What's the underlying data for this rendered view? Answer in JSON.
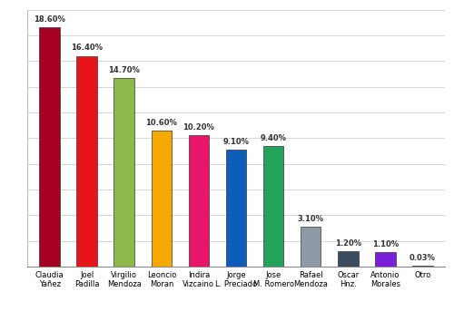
{
  "chart_data": {
    "type": "bar",
    "categories": [
      "Claudia Yañez",
      "Joel Padilla",
      "Virgilio Mendoza",
      "Leoncio Moran",
      "Indira Vizcaino",
      "Jorge L. Preciado",
      "Jose M. Romero",
      "Rafael Mendoza",
      "Oscar Hnz.",
      "Antonio Morales",
      "Otro"
    ],
    "values": [
      18.6,
      16.4,
      14.7,
      10.6,
      10.2,
      9.1,
      9.4,
      3.1,
      1.2,
      1.1,
      0.03
    ],
    "value_labels": [
      "18.60%",
      "16.40%",
      "14.70%",
      "10.60%",
      "10.20%",
      "9.10%",
      "9.40%",
      "3.10%",
      "1.20%",
      "1.10%",
      "0.03%"
    ],
    "colors": [
      "#a50021",
      "#e8141b",
      "#8db94a",
      "#f5a800",
      "#e8156b",
      "#0e5db8",
      "#23a45a",
      "#8e9aa5",
      "#3c4c60",
      "#7b1fd8",
      "#1f5fbf"
    ],
    "ylim": [
      0,
      20
    ],
    "yticks": [
      0,
      2,
      4,
      6,
      8,
      10,
      12,
      14,
      16,
      18,
      20
    ],
    "grid": true,
    "data_labels": true,
    "tick_labels": "x"
  }
}
